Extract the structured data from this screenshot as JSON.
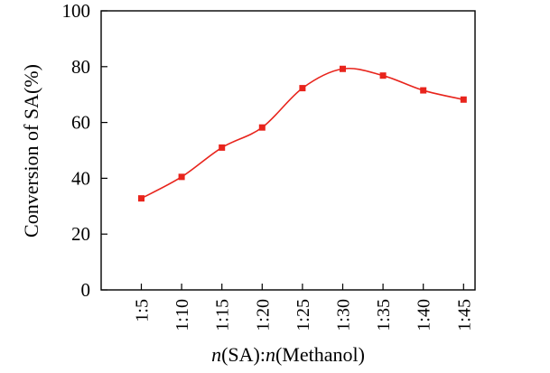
{
  "chart_data": {
    "type": "line",
    "title": "",
    "xlabel_parts": [
      {
        "text": "n",
        "italic": true
      },
      {
        "text": "(SA):",
        "italic": false
      },
      {
        "text": "n",
        "italic": true
      },
      {
        "text": "(Methanol)",
        "italic": false
      }
    ],
    "ylabel": "Conversion of SA(%)",
    "categories": [
      "1:5",
      "1:10",
      "1:15",
      "1:20",
      "1:25",
      "1:30",
      "1:35",
      "1:40",
      "1:45"
    ],
    "series": [
      {
        "color": "#e8241c",
        "marker": "square",
        "smooth": true,
        "values": [
          32.8,
          40.5,
          51.0,
          58.2,
          72.3,
          79.2,
          76.8,
          71.5,
          68.2
        ]
      }
    ],
    "ylim": [
      0,
      100
    ],
    "yticks": [
      0,
      20,
      40,
      60,
      80,
      100
    ],
    "grid": false,
    "legend": "none"
  }
}
